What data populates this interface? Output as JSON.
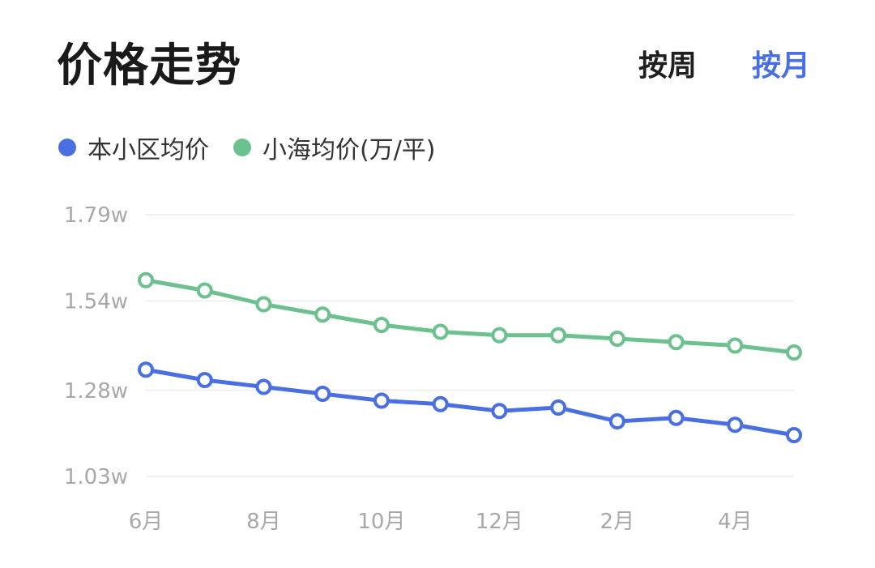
{
  "header": {
    "title": "价格走势"
  },
  "toggles": {
    "week": "按周",
    "month": "按月"
  },
  "chart_data": {
    "type": "line",
    "x": [
      "6月",
      "7月",
      "8月",
      "9月",
      "10月",
      "11月",
      "12月",
      "1月",
      "2月",
      "3月",
      "4月",
      "5月"
    ],
    "x_tick_labels": [
      "6月",
      "",
      "8月",
      "",
      "10月",
      "",
      "12月",
      "",
      "2月",
      "",
      "4月",
      ""
    ],
    "y_ticks": [
      {
        "value": 1.79,
        "label": "1.79w"
      },
      {
        "value": 1.54,
        "label": "1.54w"
      },
      {
        "value": 1.28,
        "label": "1.28w"
      },
      {
        "value": 1.03,
        "label": "1.03w"
      }
    ],
    "ylim": [
      1.03,
      1.79
    ],
    "grid": true,
    "legend_position": "top-left",
    "series": [
      {
        "name": "本小区均价",
        "color": "#4a6fe0",
        "values": [
          1.34,
          1.31,
          1.29,
          1.27,
          1.25,
          1.24,
          1.22,
          1.23,
          1.19,
          1.2,
          1.18,
          1.15
        ]
      },
      {
        "name": "小海均价(万/平)",
        "color": "#6dc18f",
        "values": [
          1.6,
          1.57,
          1.53,
          1.5,
          1.47,
          1.45,
          1.44,
          1.44,
          1.43,
          1.42,
          1.41,
          1.39
        ]
      }
    ]
  }
}
